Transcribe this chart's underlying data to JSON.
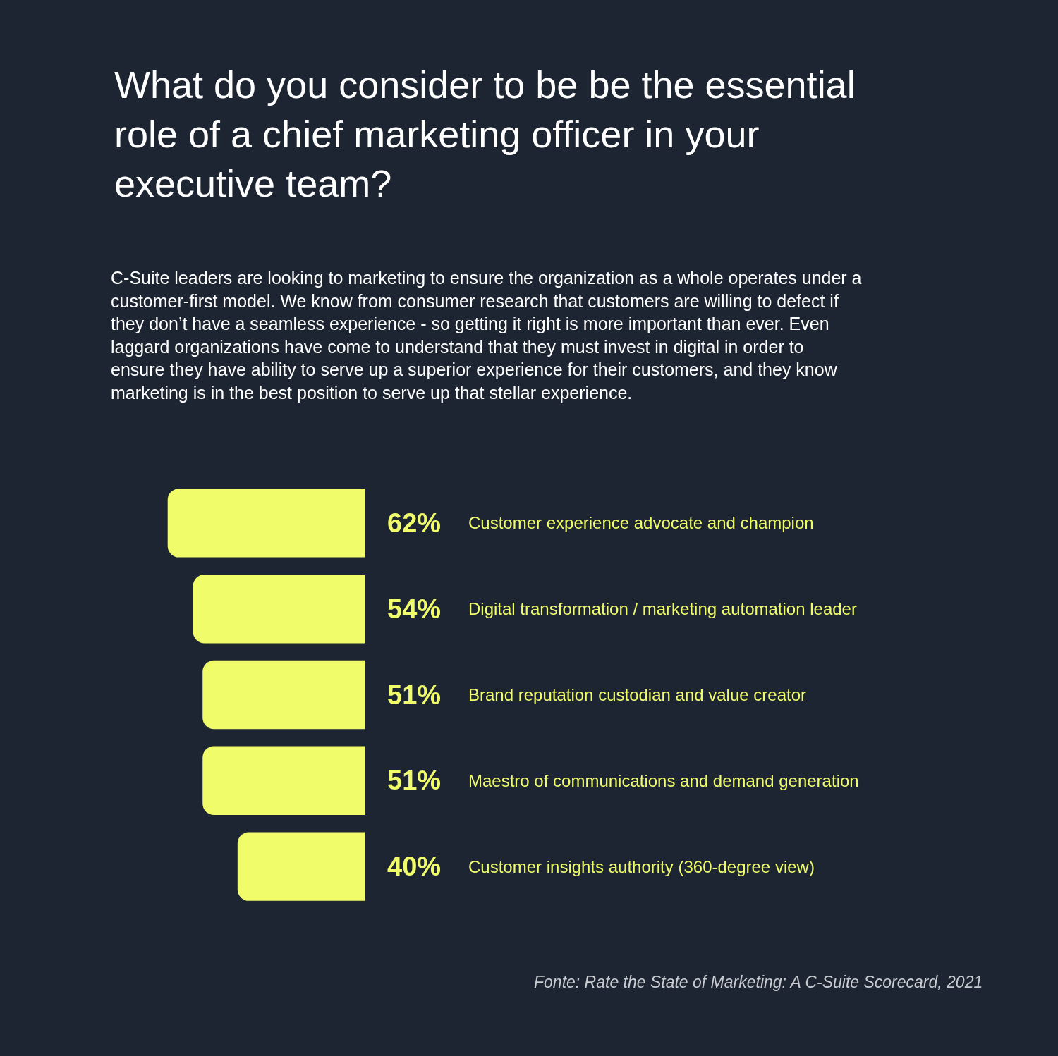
{
  "chart_data": {
    "type": "bar",
    "orientation": "horizontal",
    "title": "What do you consider to be be the essential role of a chief marketing officer in your executive team?",
    "subtitle": "C-Suite leaders are looking to marketing to ensure the organization as a whole operates under a customer-first model. We know from consumer research that customers are willing to defect if they don’t have a seamless experience - so getting it right is more important than ever. Even laggard organizations have come to understand that they must invest in digital in order to ensure they have ability to serve up a superior experience for their customers, and they know marketing is in the best position to serve up that stellar experience.",
    "categories": [
      "Customer experience advocate and champion",
      "Digital transformation / marketing automation leader",
      "Brand reputation custodian and value creator",
      "Maestro of communications and demand generation",
      "Customer insights authority (360-degree view)"
    ],
    "values": [
      62,
      54,
      51,
      51,
      40
    ],
    "value_labels": [
      "62%",
      "54%",
      "51%",
      "51%",
      "40%"
    ],
    "color": "#f0fc6a",
    "tick_labels": false,
    "grid": false,
    "legend": false,
    "annotations": [
      "Fonte: Rate the State of Marketing: A C-Suite Scorecard, 2021"
    ]
  }
}
